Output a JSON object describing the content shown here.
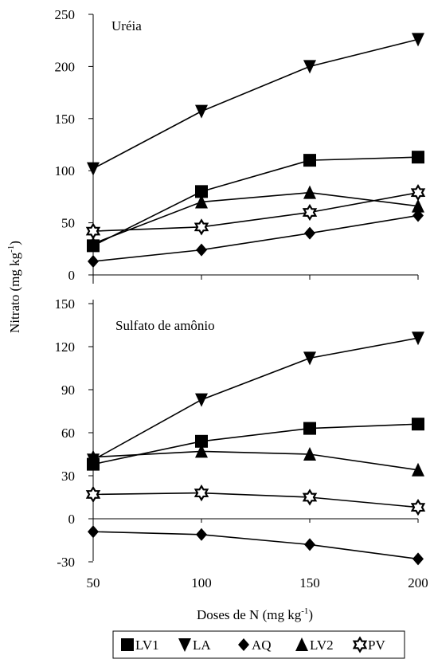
{
  "figure": {
    "ylabel": "Nitrato (mg kg",
    "ylabel_sup": "-1",
    "ylabel_end": ")",
    "xlabel": "Doses de N (mg kg",
    "xlabel_sup": "-1",
    "xlabel_end": ")"
  },
  "legend": [
    {
      "name": "LV1",
      "marker": "square"
    },
    {
      "name": "LA",
      "marker": "triangle-down"
    },
    {
      "name": "AQ",
      "marker": "diamond"
    },
    {
      "name": "LV2",
      "marker": "triangle-up"
    },
    {
      "name": "PV",
      "marker": "star"
    }
  ],
  "chart_data": [
    {
      "type": "line",
      "title": "Uréia",
      "x": [
        50,
        100,
        150,
        200
      ],
      "xlim": [
        50,
        200
      ],
      "ylim": [
        0,
        250
      ],
      "yticks": [
        0,
        50,
        100,
        150,
        200,
        250
      ],
      "series": [
        {
          "name": "LV1",
          "values": [
            28,
            80,
            110,
            113
          ]
        },
        {
          "name": "LA",
          "values": [
            102,
            157,
            200,
            226
          ]
        },
        {
          "name": "AQ",
          "values": [
            13,
            24,
            40,
            57
          ]
        },
        {
          "name": "LV2",
          "values": [
            30,
            70,
            79,
            66
          ]
        },
        {
          "name": "PV",
          "values": [
            42,
            46,
            60,
            79
          ]
        }
      ]
    },
    {
      "type": "line",
      "title": "Sulfato de amônio",
      "x": [
        50,
        100,
        150,
        200
      ],
      "xlim": [
        50,
        200
      ],
      "xticks": [
        50,
        100,
        150,
        200
      ],
      "ylim": [
        -30,
        150
      ],
      "yticks": [
        -30,
        0,
        30,
        60,
        90,
        120,
        150
      ],
      "series": [
        {
          "name": "LV1",
          "values": [
            38,
            54,
            63,
            66
          ]
        },
        {
          "name": "LA",
          "values": [
            41,
            83,
            112,
            126
          ]
        },
        {
          "name": "AQ",
          "values": [
            -9,
            -11,
            -18,
            -28
          ]
        },
        {
          "name": "LV2",
          "values": [
            43,
            47,
            45,
            34
          ]
        },
        {
          "name": "PV",
          "values": [
            17,
            18,
            15,
            8
          ]
        }
      ]
    }
  ]
}
